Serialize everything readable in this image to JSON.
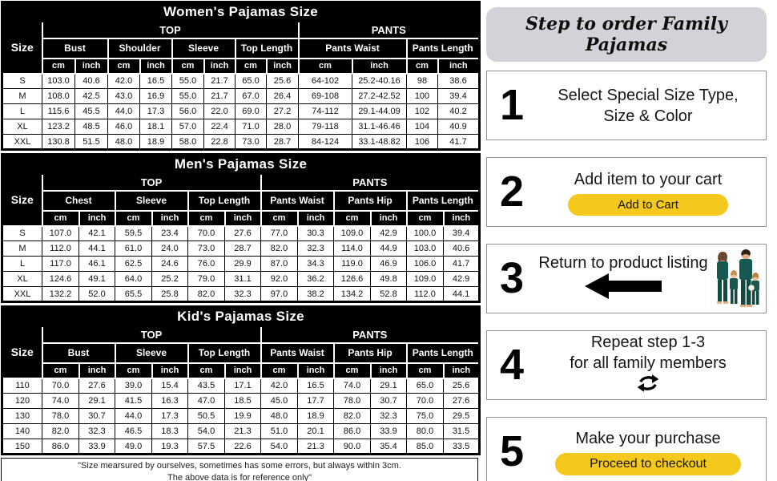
{
  "colors": {
    "button_yellow": "#F4C81C",
    "panel_title_bg": "#D3D2D8",
    "table_header_bg": "#000000",
    "pajama_teal": "#17594E"
  },
  "units": [
    "cm",
    "inch"
  ],
  "tables": [
    {
      "title": "Women's Pajamas Size",
      "corner": "Size",
      "groups": [
        {
          "label": "TOP",
          "cols": 8
        },
        {
          "label": "PANTS",
          "cols": 4
        }
      ],
      "measures": [
        "Bust",
        "Shoulder",
        "Sleeve",
        "Top Length",
        "Pants Waist",
        "Pants Length"
      ],
      "rows": [
        [
          "S",
          "103.0",
          "40.6",
          "42.0",
          "16.5",
          "55.0",
          "21.7",
          "65.0",
          "25.6",
          "64-102",
          "25.2-40.16",
          "98",
          "38.6"
        ],
        [
          "M",
          "108.0",
          "42.5",
          "43.0",
          "16.9",
          "55.0",
          "21.7",
          "67.0",
          "26.4",
          "69-108",
          "27.2-42.52",
          "100",
          "39.4"
        ],
        [
          "L",
          "115.6",
          "45.5",
          "44.0",
          "17.3",
          "56.0",
          "22.0",
          "69.0",
          "27.2",
          "74-112",
          "29.1-44.09",
          "102",
          "40.2"
        ],
        [
          "XL",
          "123.2",
          "48.5",
          "46.0",
          "18.1",
          "57.0",
          "22.4",
          "71.0",
          "28.0",
          "79-118",
          "31.1-46.46",
          "104",
          "40.9"
        ],
        [
          "XXL",
          "130.8",
          "51.5",
          "48.0",
          "18.9",
          "58.0",
          "22.8",
          "73.0",
          "28.7",
          "84-124",
          "33.1-48.82",
          "106",
          "41.7"
        ]
      ]
    },
    {
      "title": "Men's Pajamas Size",
      "corner": "Size",
      "groups": [
        {
          "label": "TOP",
          "cols": 6
        },
        {
          "label": "PANTS",
          "cols": 6
        }
      ],
      "measures": [
        "Chest",
        "Sleeve",
        "Top Length",
        "Pants Waist",
        "Pants Hip",
        "Pants Length"
      ],
      "rows": [
        [
          "S",
          "107.0",
          "42.1",
          "59.5",
          "23.4",
          "70.0",
          "27.6",
          "77.0",
          "30.3",
          "109.0",
          "42.9",
          "100.0",
          "39.4"
        ],
        [
          "M",
          "112.0",
          "44.1",
          "61.0",
          "24.0",
          "73.0",
          "28.7",
          "82.0",
          "32.3",
          "114.0",
          "44.9",
          "103.0",
          "40.6"
        ],
        [
          "L",
          "117.0",
          "46.1",
          "62.5",
          "24.6",
          "76.0",
          "29.9",
          "87.0",
          "34.3",
          "119.0",
          "46.9",
          "106.0",
          "41.7"
        ],
        [
          "XL",
          "124.6",
          "49.1",
          "64.0",
          "25.2",
          "79.0",
          "31.1",
          "92.0",
          "36.2",
          "126.6",
          "49.8",
          "109.0",
          "42.9"
        ],
        [
          "XXL",
          "132.2",
          "52.0",
          "65.5",
          "25.8",
          "82.0",
          "32.3",
          "97.0",
          "38.2",
          "134.2",
          "52.8",
          "112.0",
          "44.1"
        ]
      ]
    },
    {
      "title": "Kid's Pajamas Size",
      "corner": "Size",
      "groups": [
        {
          "label": "TOP",
          "cols": 6
        },
        {
          "label": "PANTS",
          "cols": 6
        }
      ],
      "measures": [
        "Bust",
        "Sleeve",
        "Top Length",
        "Pants Waist",
        "Pants Hip",
        "Pants Length"
      ],
      "rows": [
        [
          "110",
          "70.0",
          "27.6",
          "39.0",
          "15.4",
          "43.5",
          "17.1",
          "42.0",
          "16.5",
          "74.0",
          "29.1",
          "65.0",
          "25.6"
        ],
        [
          "120",
          "74.0",
          "29.1",
          "41.5",
          "16.3",
          "47.0",
          "18.5",
          "45.0",
          "17.7",
          "78.0",
          "30.7",
          "70.0",
          "27.6"
        ],
        [
          "130",
          "78.0",
          "30.7",
          "44.0",
          "17.3",
          "50.5",
          "19.9",
          "48.0",
          "18.9",
          "82.0",
          "32.3",
          "75.0",
          "29.5"
        ],
        [
          "140",
          "82.0",
          "32.3",
          "46.5",
          "18.3",
          "54.0",
          "21.3",
          "51.0",
          "20.1",
          "86.0",
          "33.9",
          "80.0",
          "31.5"
        ],
        [
          "150",
          "86.0",
          "33.9",
          "49.0",
          "19.3",
          "57.5",
          "22.6",
          "54.0",
          "21.3",
          "90.0",
          "35.4",
          "85.0",
          "33.5"
        ]
      ]
    }
  ],
  "footnote": {
    "line1": "\"Size mearsured by ourselves, sometimes has some errors, but always within 3cm.",
    "line2": "The above data is for reference only\""
  },
  "steps_panel": {
    "title": "Step to order Family Pajamas",
    "steps": [
      {
        "number": "1",
        "line1": "Select Special Size Type,",
        "line2": "Size & Color"
      },
      {
        "number": "2",
        "line1": "Add item to your cart",
        "button": "Add to Cart"
      },
      {
        "number": "3",
        "line1": "Return to product listing"
      },
      {
        "number": "4",
        "line1": "Repeat step 1-3",
        "line2": "for all family members"
      },
      {
        "number": "5",
        "line1": "Make your purchase",
        "button": "Proceed to checkout"
      }
    ]
  }
}
